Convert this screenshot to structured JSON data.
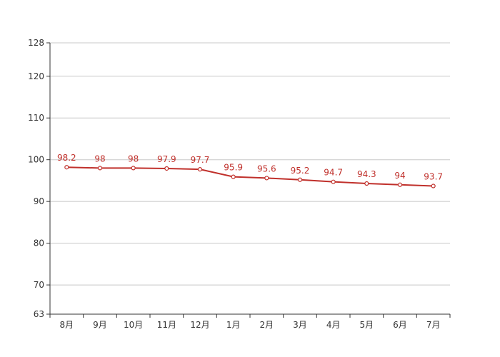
{
  "chart_data": {
    "type": "line",
    "title": "",
    "xlabel": "",
    "ylabel": "",
    "categories": [
      "8月",
      "9月",
      "10月",
      "11月",
      "12月",
      "1月",
      "2月",
      "3月",
      "4月",
      "5月",
      "6月",
      "7月"
    ],
    "series": [
      {
        "values": [
          98.2,
          98,
          98,
          97.9,
          97.7,
          95.9,
          95.6,
          95.2,
          94.7,
          94.3,
          94,
          93.7
        ],
        "color": "#c0302b"
      }
    ],
    "ylim": [
      63,
      128
    ],
    "yticks": [
      63,
      70,
      80,
      90,
      100,
      110,
      120,
      128
    ],
    "grid": true,
    "legend": "none"
  }
}
